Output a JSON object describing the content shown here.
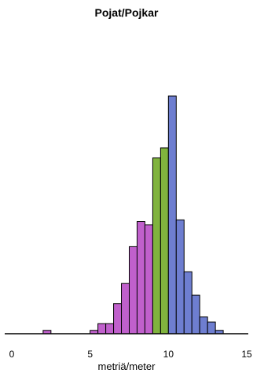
{
  "chart_data": {
    "type": "bar",
    "title": "Pojat/Pojkar",
    "subtitle": "",
    "xlabel": "metriä/meter",
    "ylabel": "",
    "xlim": [
      0,
      15
    ],
    "xticks": [
      0,
      5,
      10,
      15
    ],
    "yaxis_visible": false,
    "grid": false,
    "legend": "none",
    "bin_width": 0.5,
    "bins": [
      {
        "x0": 2.0,
        "x1": 2.5,
        "count": 2,
        "group": "low"
      },
      {
        "x0": 5.0,
        "x1": 5.5,
        "count": 2,
        "group": "low"
      },
      {
        "x0": 5.5,
        "x1": 6.0,
        "count": 6,
        "group": "low"
      },
      {
        "x0": 6.0,
        "x1": 6.5,
        "count": 6,
        "group": "low"
      },
      {
        "x0": 6.5,
        "x1": 7.0,
        "count": 18,
        "group": "low"
      },
      {
        "x0": 7.0,
        "x1": 7.5,
        "count": 30,
        "group": "low"
      },
      {
        "x0": 7.5,
        "x1": 8.0,
        "count": 52,
        "group": "low"
      },
      {
        "x0": 8.0,
        "x1": 8.5,
        "count": 67,
        "group": "low"
      },
      {
        "x0": 8.5,
        "x1": 9.0,
        "count": 65,
        "group": "low"
      },
      {
        "x0": 9.0,
        "x1": 9.5,
        "count": 105,
        "group": "mid"
      },
      {
        "x0": 9.5,
        "x1": 10.0,
        "count": 111,
        "group": "mid"
      },
      {
        "x0": 10.0,
        "x1": 10.5,
        "count": 142,
        "group": "high"
      },
      {
        "x0": 10.5,
        "x1": 11.0,
        "count": 68,
        "group": "high"
      },
      {
        "x0": 11.0,
        "x1": 11.5,
        "count": 37,
        "group": "high"
      },
      {
        "x0": 11.5,
        "x1": 12.0,
        "count": 23,
        "group": "high"
      },
      {
        "x0": 12.0,
        "x1": 12.5,
        "count": 10,
        "group": "high"
      },
      {
        "x0": 12.5,
        "x1": 13.0,
        "count": 7,
        "group": "high"
      },
      {
        "x0": 13.0,
        "x1": 13.5,
        "count": 2,
        "group": "high"
      }
    ],
    "group_colors": {
      "low": "#c060cc",
      "mid": "#80b33e",
      "high": "#6e7ed0"
    },
    "bar_outline_color": "#000000"
  }
}
